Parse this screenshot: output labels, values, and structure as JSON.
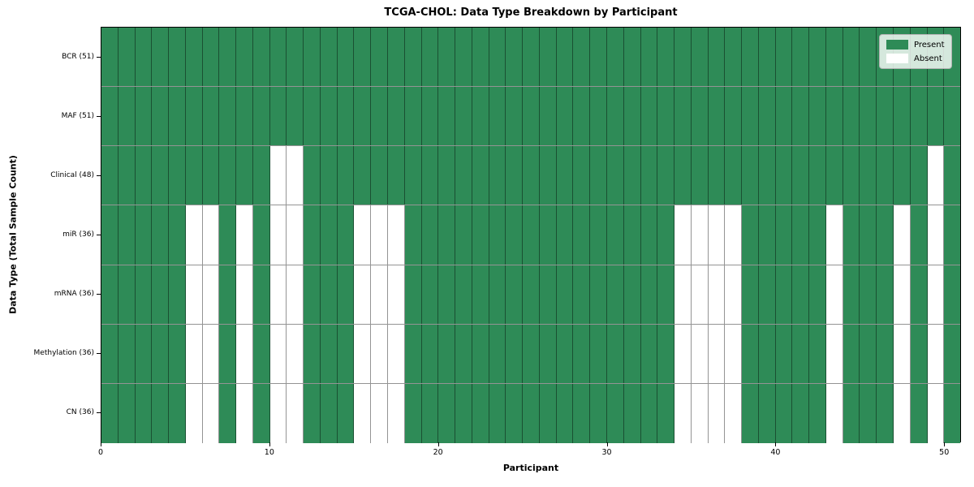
{
  "title": "TCGA-CHOL: Data Type Breakdown by Participant",
  "chart_data": {
    "type": "heatmap",
    "title": "TCGA-CHOL: Data Type Breakdown by Participant",
    "xlabel": "Participant",
    "ylabel": "Data Type (Total Sample Count)",
    "x_ticks": [
      0,
      10,
      20,
      30,
      40,
      50
    ],
    "x_range": [
      0,
      51
    ],
    "n_participants": 51,
    "grid": true,
    "legend_position": "upper right",
    "colors": {
      "present": "#2e8b57",
      "absent": "#ffffff",
      "cell_border": "rgba(0,0,0,0.42)",
      "axis": "#000000"
    },
    "legend": [
      {
        "label": "Present",
        "key": "present"
      },
      {
        "label": "Absent",
        "key": "absent"
      }
    ],
    "rows": [
      {
        "label": "BCR (51)",
        "data_type": "BCR",
        "total_present": 51,
        "absent_participants": []
      },
      {
        "label": "MAF (51)",
        "data_type": "MAF",
        "total_present": 51,
        "absent_participants": []
      },
      {
        "label": "Clinical (48)",
        "data_type": "Clinical",
        "total_present": 48,
        "absent_participants": [
          10,
          11,
          49
        ]
      },
      {
        "label": "miR (36)",
        "data_type": "miR",
        "total_present": 36,
        "absent_participants": [
          5,
          6,
          8,
          10,
          11,
          15,
          16,
          17,
          34,
          35,
          36,
          37,
          43,
          47,
          49
        ]
      },
      {
        "label": "mRNA (36)",
        "data_type": "mRNA",
        "total_present": 36,
        "absent_participants": [
          5,
          6,
          8,
          10,
          11,
          15,
          16,
          17,
          34,
          35,
          36,
          37,
          43,
          47,
          49
        ]
      },
      {
        "label": "Methylation (36)",
        "data_type": "Methylation",
        "total_present": 36,
        "absent_participants": [
          5,
          6,
          8,
          10,
          11,
          15,
          16,
          17,
          34,
          35,
          36,
          37,
          43,
          47,
          49
        ]
      },
      {
        "label": "CN (36)",
        "data_type": "CN",
        "total_present": 36,
        "absent_participants": [
          5,
          6,
          8,
          10,
          11,
          15,
          16,
          17,
          34,
          35,
          36,
          37,
          43,
          47,
          49
        ]
      }
    ]
  }
}
